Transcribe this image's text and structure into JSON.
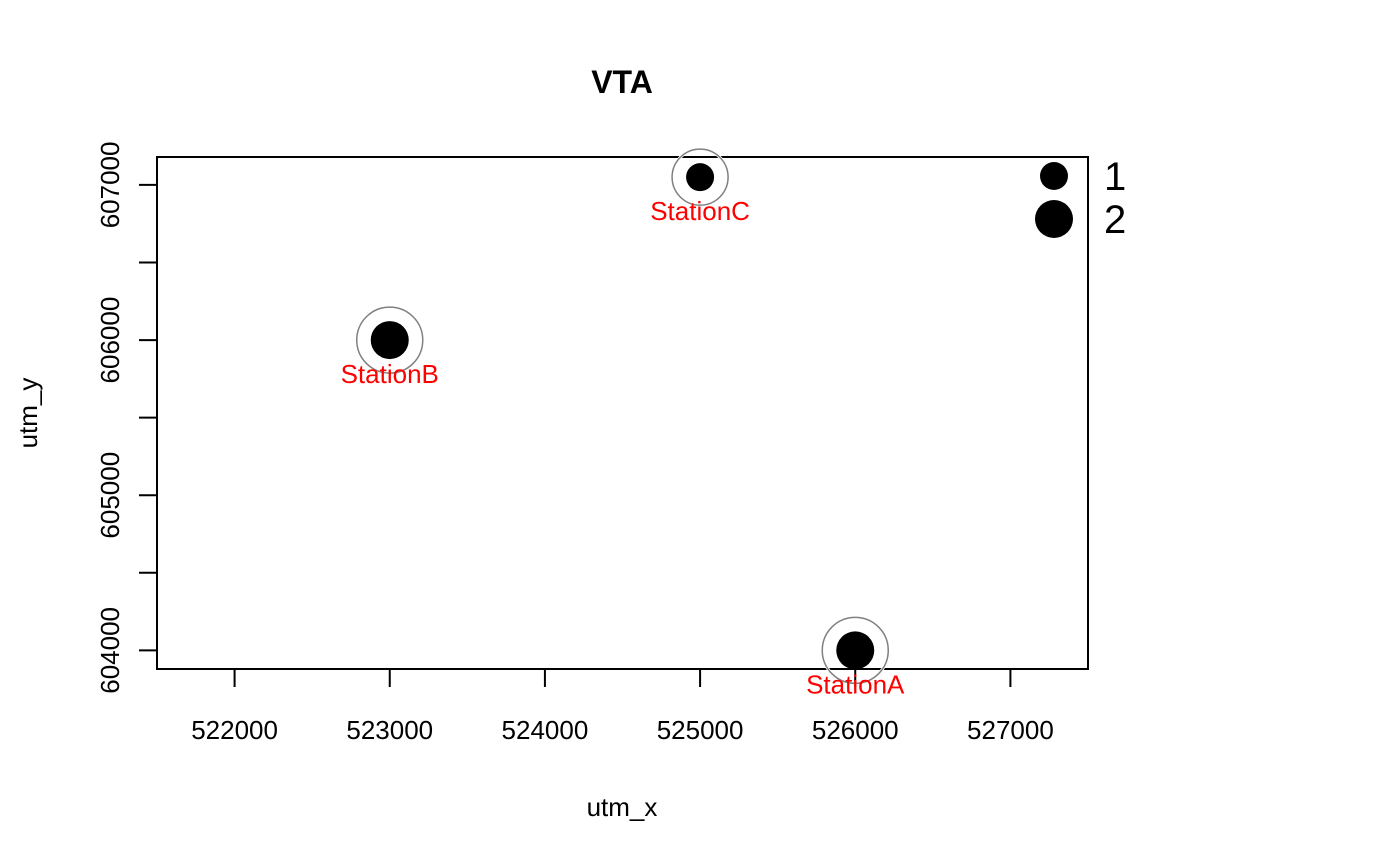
{
  "chart_data": {
    "type": "scatter",
    "title": "VTA",
    "xlabel": "utm_x",
    "ylabel": "utm_y",
    "xlim": [
      521500,
      527500
    ],
    "ylim": [
      603880,
      607180
    ],
    "xticks": [
      522000,
      523000,
      524000,
      525000,
      526000,
      527000
    ],
    "xtick_labels": [
      "522000",
      "523000",
      "524000",
      "525000",
      "526000",
      "527000"
    ],
    "yticks": [
      604000,
      604500,
      605000,
      605500,
      606000,
      606500,
      607000
    ],
    "ytick_labels": [
      "604000",
      "",
      "605000",
      "",
      "606000",
      "",
      "607000"
    ],
    "label_color": "#ff0000",
    "point_color": "#000000",
    "ring_color": "#808080",
    "points": [
      {
        "label": "StationA",
        "x": 526000,
        "y": 604000,
        "size_class": 2
      },
      {
        "label": "StationB",
        "x": 523000,
        "y": 606000,
        "size_class": 2
      },
      {
        "label": "StationC",
        "x": 525000,
        "y": 607050,
        "size_class": 1
      }
    ],
    "legend": {
      "position": "top-right",
      "entries": [
        {
          "label": "1",
          "size_class": 1
        },
        {
          "label": "2",
          "size_class": 2
        }
      ]
    }
  }
}
